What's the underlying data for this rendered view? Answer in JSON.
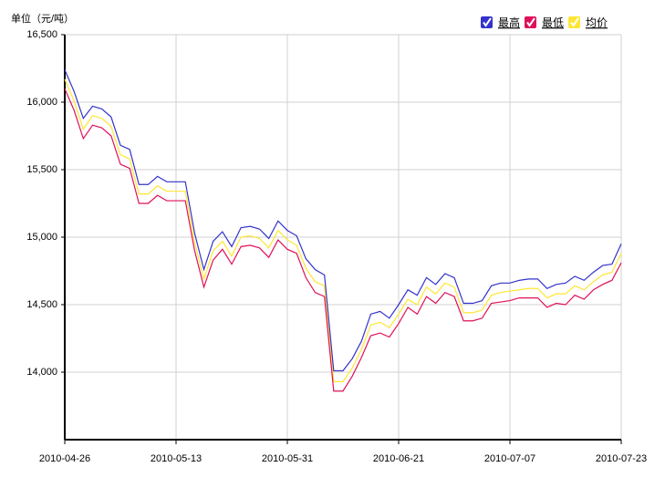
{
  "chart_data": {
    "type": "line",
    "y_label": "单位（元/吨）",
    "categories": [
      "2010-04-26",
      null,
      null,
      null,
      null,
      null,
      null,
      null,
      null,
      null,
      null,
      null,
      "2010-05-13",
      null,
      null,
      null,
      null,
      null,
      null,
      null,
      null,
      null,
      null,
      null,
      "2010-05-31",
      null,
      null,
      null,
      null,
      null,
      null,
      null,
      null,
      null,
      null,
      null,
      "2010-06-21",
      null,
      null,
      null,
      null,
      null,
      null,
      null,
      null,
      null,
      null,
      null,
      "2010-07-07",
      null,
      null,
      null,
      null,
      null,
      null,
      null,
      null,
      null,
      null,
      null,
      "2010-07-23"
    ],
    "series": [
      {
        "name": "最高",
        "color": "#3333cc",
        "values": [
          16240,
          16080,
          15880,
          15970,
          15950,
          15890,
          15680,
          15650,
          15390,
          15390,
          15450,
          15410,
          15410,
          15410,
          15030,
          14760,
          14970,
          15040,
          14930,
          15070,
          15080,
          15060,
          14990,
          15120,
          15050,
          15010,
          14840,
          14760,
          14720,
          14010,
          14010,
          14100,
          14230,
          14430,
          14450,
          14400,
          14500,
          14610,
          14570,
          14700,
          14650,
          14730,
          14700,
          14510,
          14510,
          14530,
          14640,
          14660,
          14660,
          14680,
          14690,
          14690,
          14620,
          14650,
          14660,
          14710,
          14680,
          14740,
          14790,
          14800,
          14950
        ]
      },
      {
        "name": "最低",
        "color": "#e0105a",
        "values": [
          16100,
          15940,
          15730,
          15830,
          15810,
          15750,
          15540,
          15510,
          15250,
          15250,
          15310,
          15270,
          15270,
          15270,
          14900,
          14630,
          14830,
          14910,
          14800,
          14930,
          14940,
          14920,
          14850,
          14980,
          14910,
          14880,
          14700,
          14590,
          14560,
          13860,
          13860,
          13970,
          14110,
          14270,
          14290,
          14260,
          14360,
          14480,
          14430,
          14560,
          14510,
          14590,
          14560,
          14380,
          14380,
          14400,
          14510,
          14520,
          14530,
          14550,
          14550,
          14550,
          14480,
          14510,
          14500,
          14570,
          14540,
          14610,
          14650,
          14680,
          14810
        ]
      },
      {
        "name": "均价",
        "color": "#ffe633",
        "values": [
          16170,
          16010,
          15800,
          15900,
          15880,
          15820,
          15610,
          15580,
          15320,
          15320,
          15380,
          15340,
          15340,
          15340,
          14960,
          14690,
          14900,
          14970,
          14860,
          15000,
          15010,
          14990,
          14920,
          15050,
          14980,
          14940,
          14770,
          14670,
          14640,
          13930,
          13930,
          14030,
          14170,
          14350,
          14370,
          14330,
          14430,
          14540,
          14500,
          14630,
          14580,
          14660,
          14630,
          14440,
          14440,
          14460,
          14570,
          14590,
          14600,
          14610,
          14620,
          14620,
          14550,
          14580,
          14580,
          14640,
          14610,
          14670,
          14720,
          14740,
          14880
        ]
      }
    ],
    "ylim": [
      13500,
      16500
    ],
    "yticks": [
      {
        "value": 14000,
        "label": "14,000"
      },
      {
        "value": 14500,
        "label": "14,500"
      },
      {
        "value": 15000,
        "label": "15,000"
      },
      {
        "value": 15500,
        "label": "15,500"
      },
      {
        "value": 16000,
        "label": "16,000"
      },
      {
        "value": 16500,
        "label": "16,500"
      }
    ],
    "grid": true
  }
}
